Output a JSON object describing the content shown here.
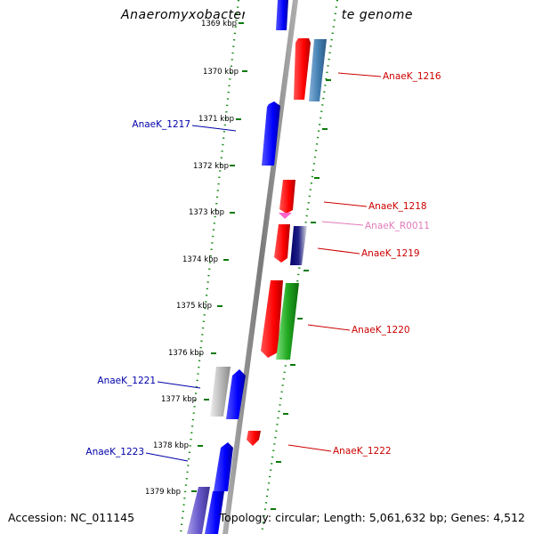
{
  "title": "Anaeromyxobacter sp. K, complete genome",
  "footer": {
    "accession": "Accession: NC_011145",
    "summary": "Topology: circular; Length: 5,061,632 bp; Genes: 4,512"
  },
  "colors": {
    "forward_cds": "#0000ff",
    "reverse_cds": "#ff0000",
    "trna": "#ff66cc",
    "dna_axis": "#808080",
    "tick": "#008000",
    "left_label": "#0000aa",
    "right_label": "#cc0000",
    "rna_label": "#e07ab8"
  },
  "ticks": [
    "1369 kbp",
    "1370 kbp",
    "1371 kbp",
    "1372 kbp",
    "1373 kbp",
    "1374 kbp",
    "1375 kbp",
    "1376 kbp",
    "1377 kbp",
    "1378 kbp",
    "1379 kbp"
  ],
  "labels": {
    "anaeK_1216": "AnaeK_1216",
    "anaeK_1217": "AnaeK_1217",
    "anaeK_1218": "AnaeK_1218",
    "anaeK_R0011": "AnaeK_R0011",
    "anaeK_1219": "AnaeK_1219",
    "anaeK_1220": "AnaeK_1220",
    "anaeK_1221": "AnaeK_1221",
    "anaeK_1222": "AnaeK_1222",
    "anaeK_1223": "AnaeK_1223"
  }
}
